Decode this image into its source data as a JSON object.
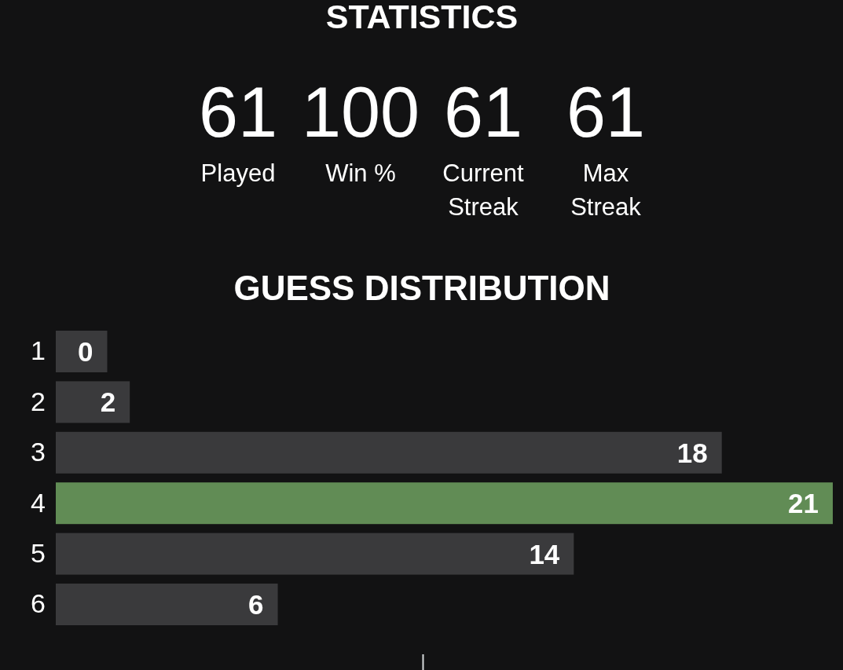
{
  "chart_data": [
    {
      "type": "other",
      "title": "STATISTICS",
      "categories": [
        "Played",
        "Win %",
        "Current Streak",
        "Max Streak"
      ],
      "values": [
        61,
        100,
        61,
        61
      ],
      "data_labels": true
    },
    {
      "type": "bar",
      "title": "GUESS DISTRIBUTION",
      "orientation": "horizontal",
      "categories": [
        "1",
        "2",
        "3",
        "4",
        "5",
        "6"
      ],
      "values": [
        0,
        2,
        18,
        21,
        14,
        6
      ],
      "colors": [
        "#3a3a3c",
        "#3a3a3c",
        "#3a3a3c",
        "#618c55",
        "#3a3a3c",
        "#3a3a3c"
      ],
      "data_labels": true
    }
  ]
}
